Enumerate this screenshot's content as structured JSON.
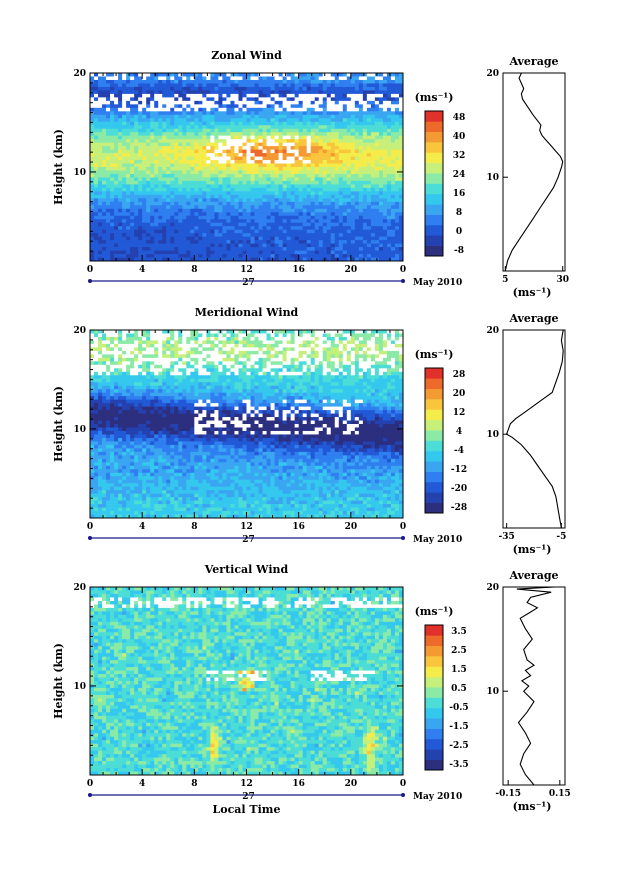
{
  "panels": [
    {
      "key": "zonal",
      "title": "Zonal Wind",
      "ylabel": "Height (km)",
      "x_ticks": [
        "0",
        "4",
        "8",
        "12",
        "16",
        "20",
        "0"
      ],
      "y_ticks": [
        "20",
        "10"
      ],
      "date_day": "27",
      "date_label": "May 2010",
      "colorbar_unit": "(ms⁻¹)",
      "colorbar_ticks": [
        "48",
        "40",
        "32",
        "24",
        "16",
        "8",
        "0",
        "-8"
      ],
      "average_title": "Average",
      "average_y_ticks": [
        "20",
        "10"
      ],
      "average_x_ticks": [
        "5",
        "30"
      ],
      "average_unit": "(ms⁻¹)"
    },
    {
      "key": "meridional",
      "title": "Meridional Wind",
      "ylabel": "Height (km)",
      "x_ticks": [
        "0",
        "4",
        "8",
        "12",
        "16",
        "20",
        "0"
      ],
      "y_ticks": [
        "20",
        "10"
      ],
      "date_day": "27",
      "date_label": "May 2010",
      "colorbar_unit": "(ms⁻¹)",
      "colorbar_ticks": [
        "28",
        "20",
        "12",
        "4",
        "-4",
        "-12",
        "-20",
        "-28"
      ],
      "average_title": "Average",
      "average_y_ticks": [
        "20",
        "10"
      ],
      "average_x_ticks": [
        "-35",
        "-5"
      ],
      "average_unit": "(ms⁻¹)"
    },
    {
      "key": "vertical",
      "title": "Vertical Wind",
      "ylabel": "Height (km)",
      "x_ticks": [
        "0",
        "4",
        "8",
        "12",
        "16",
        "20",
        "0"
      ],
      "y_ticks": [
        "20",
        "10"
      ],
      "date_day": "27",
      "date_label": "May 2010",
      "xlabel": "Local Time",
      "colorbar_unit": "(ms⁻¹)",
      "colorbar_ticks": [
        "3.5",
        "2.5",
        "1.5",
        "0.5",
        "-0.5",
        "-1.5",
        "-2.5",
        "-3.5"
      ],
      "average_title": "Average",
      "average_y_ticks": [
        "20",
        "10"
      ],
      "average_x_ticks": [
        "-0.15",
        "0.15"
      ],
      "average_unit": "(ms⁻¹)"
    }
  ],
  "colormap": [
    "#2b2f7e",
    "#2441b0",
    "#2159d6",
    "#2f7ff0",
    "#3aa6f2",
    "#35c8ee",
    "#4bddd6",
    "#8aeaa6",
    "#c6f07a",
    "#f4ec4a",
    "#f8c53c",
    "#f49a33",
    "#ee6a2a",
    "#e0312a"
  ],
  "chart_data": [
    {
      "type": "heatmap",
      "title": "Zonal Wind",
      "xlabel": "",
      "ylabel": "Height (km)",
      "x_range": [
        0,
        24
      ],
      "y_range": [
        1,
        20
      ],
      "color_range": [
        -8,
        52
      ],
      "color_ticks": [
        48,
        40,
        32,
        24,
        16,
        8,
        0,
        -8
      ],
      "description_values": {
        "jet_core": {
          "time": [
            9,
            21
          ],
          "height_km": [
            11,
            13
          ],
          "speed": 40
        }
      }
    },
    {
      "type": "line",
      "title": "Average",
      "series": [
        {
          "x": [
            5,
            6,
            8,
            11,
            14,
            17,
            20,
            23,
            26,
            28,
            29.5,
            30,
            29,
            27,
            25,
            23,
            21,
            20,
            20.5,
            17,
            14,
            12.5,
            12,
            13,
            12,
            11,
            12
          ],
          "y": [
            1,
            2,
            3,
            4,
            5,
            6,
            7,
            8,
            9,
            10,
            11,
            11.5,
            12,
            12.5,
            13,
            13.5,
            14,
            14.5,
            15,
            16,
            17,
            17.5,
            18,
            18.5,
            19,
            19.5,
            20
          ]
        }
      ],
      "xlim": [
        4,
        31
      ],
      "ylim": [
        1,
        20
      ]
    },
    {
      "type": "heatmap",
      "title": "Meridional Wind",
      "xlabel": "",
      "ylabel": "Height (km)",
      "x_range": [
        0,
        24
      ],
      "y_range": [
        1,
        20
      ],
      "color_range": [
        -32,
        32
      ],
      "color_ticks": [
        28,
        20,
        12,
        4,
        -4,
        -12,
        -20,
        -28
      ],
      "description_values": {
        "min_band": {
          "height_km": [
            9,
            13
          ],
          "speed": -28
        }
      }
    },
    {
      "type": "line",
      "title": "Average",
      "series": [
        {
          "x": [
            -5,
            -6,
            -7,
            -8,
            -10,
            -14,
            -18,
            -22,
            -27,
            -32,
            -35,
            -33,
            -30,
            -26,
            -22,
            -18,
            -14,
            -10,
            -8,
            -6,
            -4.5,
            -4,
            -4.5,
            -5,
            -4
          ],
          "y": [
            1,
            2,
            3,
            4,
            5,
            6,
            7,
            8,
            9,
            9.7,
            10,
            11,
            11.5,
            12,
            12.5,
            13,
            13.5,
            14,
            15,
            16,
            17,
            18,
            18.5,
            19,
            20
          ]
        }
      ],
      "xlim": [
        -37,
        -3
      ],
      "ylim": [
        1,
        20
      ]
    },
    {
      "type": "heatmap",
      "title": "Vertical Wind",
      "xlabel": "Local Time",
      "ylabel": "Height (km)",
      "x_range": [
        0,
        24
      ],
      "y_range": [
        1,
        20
      ],
      "color_range": [
        -4,
        4
      ],
      "color_ticks": [
        3.5,
        2.5,
        1.5,
        0.5,
        -0.5,
        -1.5,
        -2.5,
        -3.5
      ]
    },
    {
      "type": "line",
      "title": "Average",
      "series": [
        {
          "x": [
            0.0,
            -0.05,
            -0.08,
            -0.06,
            -0.02,
            -0.05,
            -0.09,
            -0.04,
            0.0,
            -0.06,
            -0.03,
            -0.07,
            -0.02,
            -0.05,
            0.0,
            -0.04,
            -0.06,
            -0.01,
            -0.05,
            -0.08,
            -0.03,
            0.02,
            -0.04,
            -0.02,
            0.1,
            -0.1,
            0.12
          ],
          "y": [
            1,
            2,
            3,
            4,
            5,
            6,
            7,
            8,
            9,
            10,
            10.5,
            11,
            11.5,
            12,
            12.5,
            13,
            14,
            15,
            16,
            17,
            17.5,
            18,
            18.5,
            19,
            19.5,
            19.8,
            20
          ]
        }
      ],
      "xlim": [
        -0.18,
        0.18
      ],
      "ylim": [
        1,
        20
      ]
    }
  ]
}
